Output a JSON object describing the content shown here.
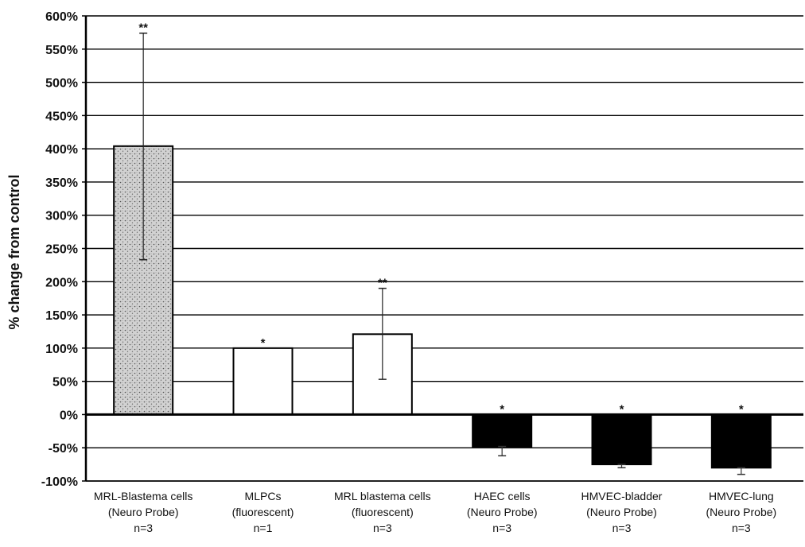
{
  "chart_data": {
    "type": "bar",
    "title": "",
    "ylabel": "% change from control",
    "xlabel": "",
    "ylim": [
      -100,
      600
    ],
    "yticks": [
      -100,
      -50,
      0,
      50,
      100,
      150,
      200,
      250,
      300,
      350,
      400,
      450,
      500,
      550,
      600
    ],
    "ytick_labels": [
      "-100%",
      "-50%",
      "0%",
      "50%",
      "100%",
      "150%",
      "200%",
      "250%",
      "300%",
      "350%",
      "400%",
      "450%",
      "500%",
      "550%",
      "600%"
    ],
    "grid": true,
    "categories": [
      {
        "lines": [
          "MRL-Blastema cells",
          "(Neuro Probe)",
          "n=3"
        ]
      },
      {
        "lines": [
          "MLPCs",
          "(fluorescent)",
          "n=1"
        ]
      },
      {
        "lines": [
          "MRL blastema cells",
          "(fluorescent)",
          "n=3"
        ]
      },
      {
        "lines": [
          "HAEC cells",
          "(Neuro Probe)",
          "n=3"
        ]
      },
      {
        "lines": [
          "HMVEC-bladder",
          "(Neuro Probe)",
          "n=3"
        ]
      },
      {
        "lines": [
          "HMVEC-lung",
          "(Neuro Probe)",
          "n=3"
        ]
      }
    ],
    "values": [
      404,
      100,
      121,
      -48,
      -75,
      -80
    ],
    "error_low": [
      233,
      null,
      53,
      -62,
      -80,
      -90
    ],
    "error_high": [
      574,
      null,
      190,
      -48,
      -75,
      -80
    ],
    "significance": [
      "**",
      "*",
      "**",
      "*",
      "*",
      "*"
    ],
    "fills": [
      "stipple-gray",
      "white",
      "white",
      "black",
      "black",
      "black"
    ],
    "colors": {
      "axis": "#000000",
      "grid": "#000000",
      "stipple_dot": "#555555",
      "positive_fill": "#ffffff",
      "negative_fill": "#000000"
    }
  }
}
